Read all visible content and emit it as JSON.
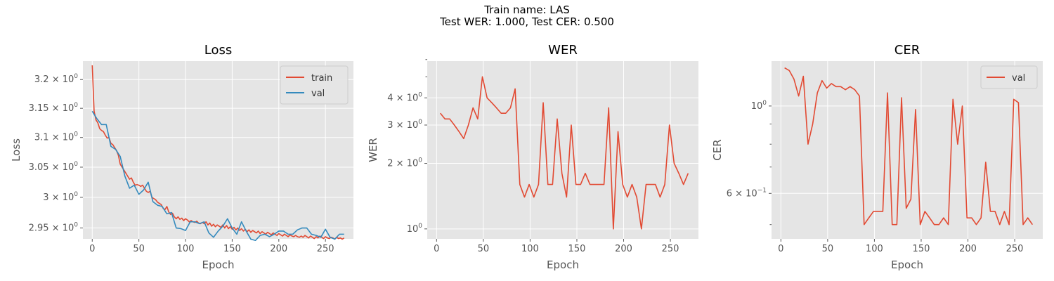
{
  "figure": {
    "suptitle_line1": "Train name: LAS",
    "suptitle_line2": "Test WER: 1.000, Test CER: 0.500",
    "colors": {
      "background": "#e5e5e5",
      "grid": "#ffffff",
      "train": "#e24a33",
      "val": "#348abd",
      "text": "#555555"
    }
  },
  "chart_data": [
    {
      "type": "line",
      "title": "Loss",
      "xlabel": "Epoch",
      "ylabel": "Loss",
      "xlim": [
        -10,
        280
      ],
      "ylim": [
        2.9325,
        3.2325
      ],
      "yscale": "log",
      "grid": true,
      "legend": "top-right",
      "xticks": [
        0,
        50,
        100,
        150,
        200,
        250
      ],
      "yticks": [
        {
          "value": 2.95,
          "label": "2.95 × 10",
          "exp": "0"
        },
        {
          "value": 3.0,
          "label": "3 × 10",
          "exp": "0"
        },
        {
          "value": 3.05,
          "label": "3.05 × 10",
          "exp": "0"
        },
        {
          "value": 3.1,
          "label": "3.1 × 10",
          "exp": "0"
        },
        {
          "value": 3.15,
          "label": "3.15 × 10",
          "exp": "0"
        },
        {
          "value": 3.2,
          "label": "3.2 × 10",
          "exp": "0"
        }
      ],
      "series": [
        {
          "name": "train",
          "color": "#e24a33",
          "x": [
            0,
            2,
            4,
            6,
            8,
            10,
            12,
            14,
            16,
            18,
            20,
            22,
            24,
            26,
            28,
            30,
            32,
            34,
            36,
            38,
            40,
            42,
            44,
            46,
            48,
            50,
            52,
            54,
            56,
            58,
            60,
            62,
            64,
            66,
            68,
            70,
            72,
            74,
            76,
            78,
            80,
            82,
            84,
            86,
            88,
            90,
            92,
            94,
            96,
            98,
            100,
            102,
            104,
            106,
            108,
            110,
            112,
            114,
            116,
            118,
            120,
            122,
            124,
            126,
            128,
            130,
            132,
            134,
            136,
            138,
            140,
            142,
            144,
            146,
            148,
            150,
            152,
            154,
            156,
            158,
            160,
            162,
            164,
            166,
            168,
            170,
            172,
            174,
            176,
            178,
            180,
            182,
            184,
            186,
            188,
            190,
            192,
            194,
            196,
            198,
            200,
            202,
            204,
            206,
            208,
            210,
            212,
            214,
            216,
            218,
            220,
            222,
            224,
            226,
            228,
            230,
            232,
            234,
            236,
            238,
            240,
            242,
            244,
            246,
            248,
            250,
            252,
            254,
            256,
            258,
            260,
            262,
            264,
            266,
            268,
            270
          ],
          "y": [
            3.225,
            3.145,
            3.13,
            3.125,
            3.115,
            3.112,
            3.11,
            3.104,
            3.099,
            3.1,
            3.09,
            3.088,
            3.083,
            3.078,
            3.07,
            3.055,
            3.05,
            3.045,
            3.04,
            3.035,
            3.03,
            3.032,
            3.025,
            3.02,
            3.021,
            3.02,
            3.018,
            3.02,
            3.015,
            3.01,
            3.008,
            3.01,
            3.0,
            2.998,
            2.996,
            2.992,
            2.99,
            2.988,
            2.982,
            2.98,
            2.985,
            2.976,
            2.972,
            2.974,
            2.968,
            2.965,
            2.968,
            2.964,
            2.966,
            2.962,
            2.965,
            2.963,
            2.96,
            2.962,
            2.96,
            2.959,
            2.961,
            2.958,
            2.957,
            2.959,
            2.957,
            2.96,
            2.955,
            2.958,
            2.953,
            2.956,
            2.952,
            2.955,
            2.953,
            2.951,
            2.955,
            2.95,
            2.954,
            2.949,
            2.952,
            2.948,
            2.951,
            2.947,
            2.95,
            2.946,
            2.949,
            2.945,
            2.948,
            2.944,
            2.947,
            2.943,
            2.946,
            2.944,
            2.942,
            2.945,
            2.941,
            2.944,
            2.942,
            2.94,
            2.943,
            2.941,
            2.939,
            2.942,
            2.94,
            2.938,
            2.941,
            2.939,
            2.937,
            2.94,
            2.938,
            2.936,
            2.939,
            2.937,
            2.936,
            2.938,
            2.936,
            2.935,
            2.937,
            2.935,
            2.938,
            2.936,
            2.934,
            2.937,
            2.935,
            2.933,
            2.936,
            2.934,
            2.937,
            2.935,
            2.933,
            2.936,
            2.934,
            2.933,
            2.935,
            2.934,
            2.932,
            2.935,
            2.933,
            2.934,
            2.932,
            2.934
          ]
        },
        {
          "name": "val",
          "color": "#348abd",
          "x": [
            0,
            5,
            10,
            15,
            20,
            25,
            30,
            35,
            40,
            45,
            50,
            55,
            60,
            65,
            70,
            75,
            80,
            85,
            90,
            95,
            100,
            105,
            110,
            115,
            120,
            125,
            130,
            135,
            140,
            145,
            150,
            155,
            160,
            165,
            170,
            175,
            180,
            185,
            190,
            195,
            200,
            205,
            210,
            215,
            220,
            225,
            230,
            235,
            240,
            245,
            250,
            255,
            260,
            265,
            270
          ],
          "y": [
            3.145,
            3.132,
            3.122,
            3.122,
            3.085,
            3.08,
            3.068,
            3.035,
            3.015,
            3.02,
            3.005,
            3.012,
            3.025,
            2.993,
            2.987,
            2.985,
            2.973,
            2.975,
            2.95,
            2.949,
            2.946,
            2.96,
            2.96,
            2.957,
            2.96,
            2.942,
            2.935,
            2.945,
            2.953,
            2.965,
            2.95,
            2.94,
            2.96,
            2.945,
            2.932,
            2.93,
            2.938,
            2.94,
            2.936,
            2.94,
            2.945,
            2.945,
            2.94,
            2.94,
            2.947,
            2.95,
            2.95,
            2.94,
            2.938,
            2.935,
            2.948,
            2.935,
            2.932,
            2.94,
            2.94
          ]
        }
      ]
    },
    {
      "type": "line",
      "title": "WER",
      "xlabel": "Epoch",
      "ylabel": "WER",
      "xlim": [
        -10,
        280
      ],
      "ylim": [
        0.9,
        5.9
      ],
      "yscale": "log",
      "grid": true,
      "legend": "none",
      "xticks": [
        0,
        50,
        100,
        150,
        200,
        250
      ],
      "yticks": [
        {
          "value": 1,
          "label": "10",
          "exp": "0"
        },
        {
          "value": 2,
          "label": "2 × 10",
          "exp": "0"
        },
        {
          "value": 3,
          "label": "3 × 10",
          "exp": "0"
        },
        {
          "value": 4,
          "label": "4 × 10",
          "exp": "0"
        }
      ],
      "minor_yticks": [
        5,
        6
      ],
      "series": [
        {
          "name": "val",
          "color": "#e24a33",
          "x": [
            4,
            9,
            14,
            19,
            24,
            29,
            34,
            39,
            44,
            49,
            54,
            59,
            64,
            69,
            74,
            79,
            84,
            89,
            94,
            99,
            104,
            109,
            114,
            119,
            124,
            129,
            134,
            139,
            144,
            149,
            154,
            159,
            164,
            169,
            174,
            179,
            184,
            189,
            194,
            199,
            204,
            209,
            214,
            219,
            224,
            229,
            234,
            239,
            244,
            249,
            254,
            259,
            264,
            269
          ],
          "y": [
            3.4,
            3.2,
            3.2,
            3.0,
            2.8,
            2.6,
            3.0,
            3.6,
            3.2,
            5.0,
            4.0,
            3.8,
            3.6,
            3.4,
            3.4,
            3.6,
            4.4,
            1.6,
            1.4,
            1.6,
            1.4,
            1.6,
            3.8,
            1.6,
            1.6,
            3.2,
            1.8,
            1.4,
            3.0,
            1.6,
            1.6,
            1.8,
            1.6,
            1.6,
            1.6,
            1.6,
            3.6,
            1.0,
            2.8,
            1.6,
            1.4,
            1.6,
            1.4,
            1.0,
            1.6,
            1.6,
            1.6,
            1.4,
            1.6,
            3.0,
            2.0,
            1.8,
            1.6,
            1.8
          ]
        }
      ]
    },
    {
      "type": "line",
      "title": "CER",
      "xlabel": "Epoch",
      "ylabel": "CER",
      "xlim": [
        -10,
        280
      ],
      "ylim": [
        0.46,
        1.3
      ],
      "yscale": "log",
      "grid": true,
      "legend": "top-right",
      "xticks": [
        0,
        50,
        100,
        150,
        200,
        250
      ],
      "yticks": [
        {
          "value": 1,
          "label": "10",
          "exp": "0"
        },
        {
          "value": 0.6,
          "label": "6 × 10",
          "exp": "−1"
        }
      ],
      "minor_yticks": [
        0.5,
        0.7,
        0.8,
        0.9
      ],
      "series": [
        {
          "name": "val",
          "color": "#e24a33",
          "x": [
            4,
            9,
            14,
            19,
            24,
            29,
            34,
            39,
            44,
            49,
            54,
            59,
            64,
            69,
            74,
            79,
            84,
            89,
            94,
            99,
            104,
            109,
            114,
            119,
            124,
            129,
            134,
            139,
            144,
            149,
            154,
            159,
            164,
            169,
            174,
            179,
            184,
            189,
            194,
            199,
            204,
            209,
            214,
            219,
            224,
            229,
            234,
            239,
            244,
            249,
            254,
            259,
            264,
            269
          ],
          "y": [
            1.25,
            1.23,
            1.17,
            1.06,
            1.19,
            0.8,
            0.9,
            1.08,
            1.16,
            1.11,
            1.14,
            1.12,
            1.12,
            1.1,
            1.12,
            1.1,
            1.06,
            0.5,
            0.52,
            0.54,
            0.54,
            0.54,
            1.08,
            0.5,
            0.5,
            1.05,
            0.55,
            0.58,
            0.98,
            0.5,
            0.54,
            0.52,
            0.5,
            0.5,
            0.52,
            0.5,
            1.04,
            0.8,
            1.0,
            0.52,
            0.52,
            0.5,
            0.52,
            0.72,
            0.54,
            0.54,
            0.5,
            0.54,
            0.5,
            1.04,
            1.02,
            0.5,
            0.52,
            0.5
          ]
        }
      ]
    }
  ]
}
